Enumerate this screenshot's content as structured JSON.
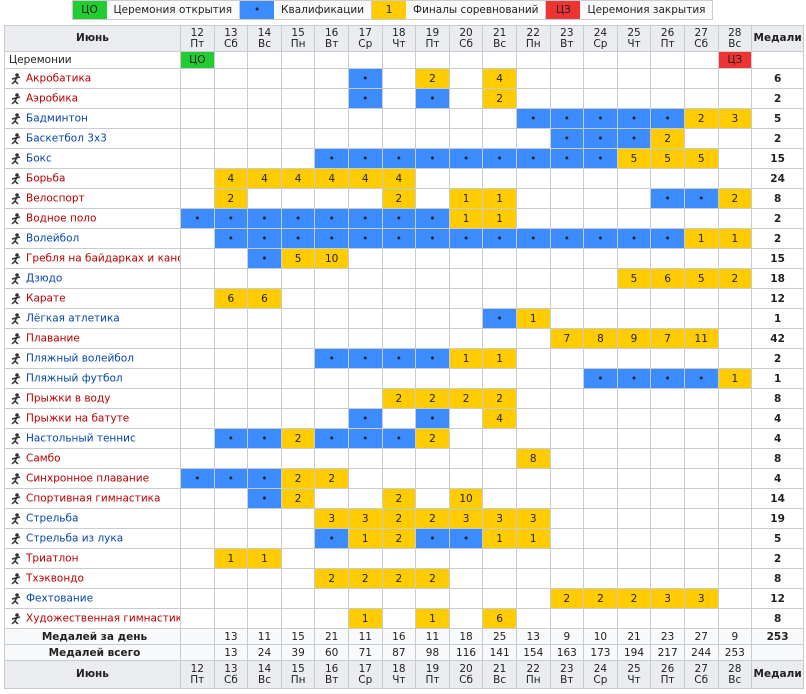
{
  "legend": [
    {
      "key": "ЦО",
      "label": "Церемония открытия",
      "color": "#22cc33"
    },
    {
      "key": "•",
      "label": "Квалификации",
      "color": "#3c8cff"
    },
    {
      "key": "1",
      "label": "Финалы соревнований",
      "color": "#ffcc00"
    },
    {
      "key": "ЦЗ",
      "label": "Церемония закрытия",
      "color": "#ee3333"
    }
  ],
  "table": {
    "header": {
      "month": "Июнь",
      "medals": "Медали"
    },
    "days": [
      {
        "date": 12,
        "weekday": "Пт"
      },
      {
        "date": 13,
        "weekday": "Сб"
      },
      {
        "date": 14,
        "weekday": "Вс"
      },
      {
        "date": 15,
        "weekday": "Пн"
      },
      {
        "date": 16,
        "weekday": "Вт"
      },
      {
        "date": 17,
        "weekday": "Ср"
      },
      {
        "date": 18,
        "weekday": "Чт"
      },
      {
        "date": 19,
        "weekday": "Пт"
      },
      {
        "date": 20,
        "weekday": "Сб"
      },
      {
        "date": 21,
        "weekday": "Вс"
      },
      {
        "date": 22,
        "weekday": "Пн"
      },
      {
        "date": 23,
        "weekday": "Вт"
      },
      {
        "date": 24,
        "weekday": "Ср"
      },
      {
        "date": 25,
        "weekday": "Чт"
      },
      {
        "date": 26,
        "weekday": "Пт"
      },
      {
        "date": 27,
        "weekday": "Сб"
      },
      {
        "date": 28,
        "weekday": "Вс"
      }
    ],
    "ceremonies": {
      "label": "Церемонии",
      "cells": [
        "ЦО",
        null,
        null,
        null,
        null,
        null,
        null,
        null,
        null,
        null,
        null,
        null,
        null,
        null,
        null,
        null,
        "ЦЗ"
      ]
    },
    "sports": [
      {
        "name": "Акробатика",
        "color": "#ba0000",
        "medals": 6,
        "cells": [
          null,
          null,
          null,
          null,
          null,
          "•",
          null,
          2,
          null,
          4,
          null,
          null,
          null,
          null,
          null,
          null,
          null
        ]
      },
      {
        "name": "Аэробика",
        "color": "#ba0000",
        "medals": 2,
        "cells": [
          null,
          null,
          null,
          null,
          null,
          "•",
          null,
          "•",
          null,
          2,
          null,
          null,
          null,
          null,
          null,
          null,
          null
        ]
      },
      {
        "name": "Бадминтон",
        "color": "#0645ad",
        "medals": 5,
        "cells": [
          null,
          null,
          null,
          null,
          null,
          null,
          null,
          null,
          null,
          null,
          "•",
          "•",
          "•",
          "•",
          "•",
          2,
          3
        ]
      },
      {
        "name": "Баскетбол 3x3",
        "color": "#0645ad",
        "medals": 2,
        "cells": [
          null,
          null,
          null,
          null,
          null,
          null,
          null,
          null,
          null,
          null,
          null,
          "•",
          "•",
          "•",
          2,
          null,
          null
        ]
      },
      {
        "name": "Бокс",
        "color": "#0645ad",
        "medals": 15,
        "cells": [
          null,
          null,
          null,
          null,
          "•",
          "•",
          "•",
          "•",
          "•",
          "•",
          "•",
          "•",
          "•",
          5,
          5,
          5,
          null
        ]
      },
      {
        "name": "Борьба",
        "color": "#ba0000",
        "medals": 24,
        "cells": [
          null,
          4,
          4,
          4,
          4,
          4,
          4,
          null,
          null,
          null,
          null,
          null,
          null,
          null,
          null,
          null,
          null
        ]
      },
      {
        "name": "Велоспорт",
        "color": "#ba0000",
        "medals": 8,
        "cells": [
          null,
          2,
          null,
          null,
          null,
          null,
          2,
          null,
          1,
          1,
          null,
          null,
          null,
          null,
          "•",
          "•",
          2
        ]
      },
      {
        "name": "Водное поло",
        "color": "#ba0000",
        "medals": 2,
        "cells": [
          "•",
          "•",
          "•",
          "•",
          "•",
          "•",
          "•",
          "•",
          1,
          1,
          null,
          null,
          null,
          null,
          null,
          null,
          null
        ]
      },
      {
        "name": "Волейбол",
        "color": "#0645ad",
        "medals": 2,
        "cells": [
          null,
          "•",
          "•",
          "•",
          "•",
          "•",
          "•",
          "•",
          "•",
          "•",
          "•",
          "•",
          "•",
          "•",
          "•",
          1,
          1
        ]
      },
      {
        "name": "Гребля на байдарках и каноэ",
        "color": "#ba0000",
        "medals": 15,
        "cells": [
          null,
          null,
          "•",
          5,
          10,
          null,
          null,
          null,
          null,
          null,
          null,
          null,
          null,
          null,
          null,
          null,
          null
        ]
      },
      {
        "name": "Дзюдо",
        "color": "#0645ad",
        "medals": 18,
        "cells": [
          null,
          null,
          null,
          null,
          null,
          null,
          null,
          null,
          null,
          null,
          null,
          null,
          null,
          5,
          6,
          5,
          2
        ]
      },
      {
        "name": "Карате",
        "color": "#ba0000",
        "medals": 12,
        "cells": [
          null,
          6,
          6,
          null,
          null,
          null,
          null,
          null,
          null,
          null,
          null,
          null,
          null,
          null,
          null,
          null,
          null
        ]
      },
      {
        "name": "Лёгкая атлетика",
        "color": "#0645ad",
        "medals": 1,
        "cells": [
          null,
          null,
          null,
          null,
          null,
          null,
          null,
          null,
          null,
          "•",
          1,
          null,
          null,
          null,
          null,
          null,
          null
        ]
      },
      {
        "name": "Плавание",
        "color": "#ba0000",
        "medals": 42,
        "cells": [
          null,
          null,
          null,
          null,
          null,
          null,
          null,
          null,
          null,
          null,
          null,
          7,
          8,
          9,
          7,
          11,
          null
        ]
      },
      {
        "name": "Пляжный волейбол",
        "color": "#0645ad",
        "medals": 2,
        "cells": [
          null,
          null,
          null,
          null,
          "•",
          "•",
          "•",
          "•",
          1,
          1,
          null,
          null,
          null,
          null,
          null,
          null,
          null
        ]
      },
      {
        "name": "Пляжный футбол",
        "color": "#0645ad",
        "medals": 1,
        "cells": [
          null,
          null,
          null,
          null,
          null,
          null,
          null,
          null,
          null,
          null,
          null,
          null,
          "•",
          "•",
          "•",
          "•",
          1
        ]
      },
      {
        "name": "Прыжки в воду",
        "color": "#ba0000",
        "medals": 8,
        "cells": [
          null,
          null,
          null,
          null,
          null,
          null,
          2,
          2,
          2,
          2,
          null,
          null,
          null,
          null,
          null,
          null,
          null
        ]
      },
      {
        "name": "Прыжки на батуте",
        "color": "#ba0000",
        "medals": 4,
        "cells": [
          null,
          null,
          null,
          null,
          null,
          "•",
          null,
          "•",
          null,
          4,
          null,
          null,
          null,
          null,
          null,
          null,
          null
        ]
      },
      {
        "name": "Настольный теннис",
        "color": "#0645ad",
        "medals": 4,
        "cells": [
          null,
          "•",
          "•",
          2,
          "•",
          "•",
          "•",
          2,
          null,
          null,
          null,
          null,
          null,
          null,
          null,
          null,
          null
        ]
      },
      {
        "name": "Самбо",
        "color": "#ba0000",
        "medals": 8,
        "cells": [
          null,
          null,
          null,
          null,
          null,
          null,
          null,
          null,
          null,
          null,
          8,
          null,
          null,
          null,
          null,
          null,
          null
        ]
      },
      {
        "name": "Синхронное плавание",
        "color": "#ba0000",
        "medals": 4,
        "cells": [
          "•",
          "•",
          "•",
          2,
          2,
          null,
          null,
          null,
          null,
          null,
          null,
          null,
          null,
          null,
          null,
          null,
          null
        ]
      },
      {
        "name": "Спортивная гимнастика",
        "color": "#ba0000",
        "medals": 14,
        "cells": [
          null,
          null,
          "•",
          2,
          null,
          null,
          2,
          null,
          10,
          null,
          null,
          null,
          null,
          null,
          null,
          null,
          null
        ]
      },
      {
        "name": "Стрельба",
        "color": "#0645ad",
        "medals": 19,
        "cells": [
          null,
          null,
          null,
          null,
          3,
          3,
          2,
          2,
          3,
          3,
          3,
          null,
          null,
          null,
          null,
          null,
          null
        ]
      },
      {
        "name": "Стрельба из лука",
        "color": "#0645ad",
        "medals": 5,
        "cells": [
          null,
          null,
          null,
          null,
          "•",
          1,
          2,
          "•",
          "•",
          1,
          1,
          null,
          null,
          null,
          null,
          null,
          null
        ]
      },
      {
        "name": "Триатлон",
        "color": "#ba0000",
        "medals": 2,
        "cells": [
          null,
          1,
          1,
          null,
          null,
          null,
          null,
          null,
          null,
          null,
          null,
          null,
          null,
          null,
          null,
          null,
          null
        ]
      },
      {
        "name": "Тхэквондо",
        "color": "#ba0000",
        "medals": 8,
        "cells": [
          null,
          null,
          null,
          null,
          2,
          2,
          2,
          2,
          null,
          null,
          null,
          null,
          null,
          null,
          null,
          null,
          null
        ]
      },
      {
        "name": "Фехтование",
        "color": "#0645ad",
        "medals": 12,
        "cells": [
          null,
          null,
          null,
          null,
          null,
          null,
          null,
          null,
          null,
          null,
          null,
          2,
          2,
          2,
          3,
          3,
          null
        ]
      },
      {
        "name": "Художественная гимнастика",
        "color": "#ba0000",
        "medals": 8,
        "cells": [
          null,
          null,
          null,
          null,
          null,
          1,
          null,
          1,
          null,
          6,
          null,
          null,
          null,
          null,
          null,
          null,
          null
        ]
      }
    ],
    "daily": {
      "label": "Медалей за день",
      "values": [
        null,
        13,
        11,
        15,
        21,
        11,
        16,
        11,
        18,
        25,
        13,
        9,
        10,
        21,
        23,
        27,
        9
      ],
      "total": 253
    },
    "cumulative": {
      "label": "Медалей всего",
      "values": [
        null,
        13,
        24,
        39,
        60,
        71,
        87,
        98,
        116,
        141,
        154,
        163,
        173,
        194,
        217,
        244,
        253
      ]
    }
  }
}
